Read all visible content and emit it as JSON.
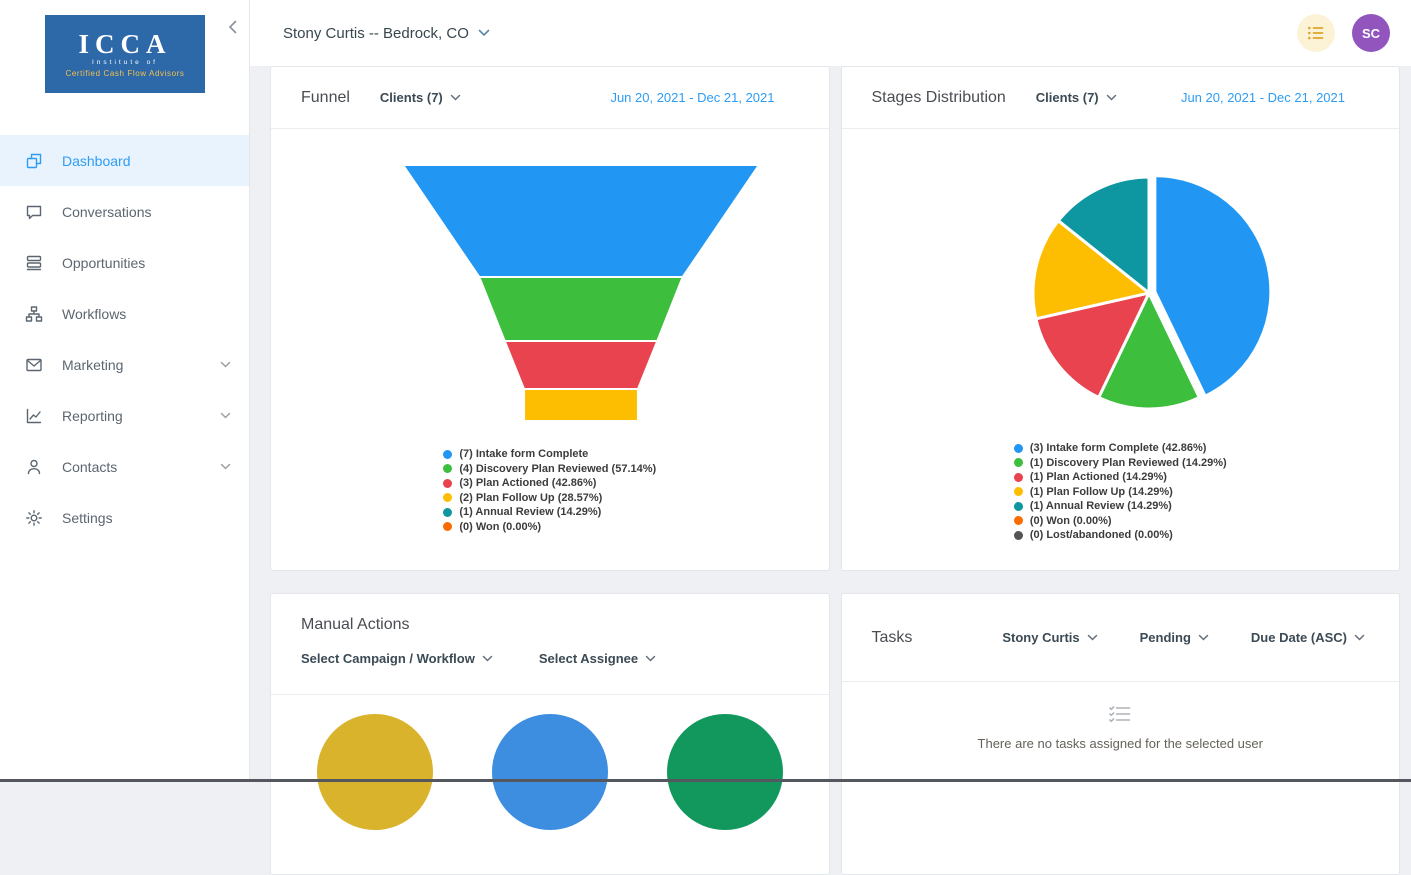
{
  "sidebar": {
    "logo": {
      "acronym": "ICCA",
      "line1": "Institute of",
      "line2": "Certified Cash Flow Advisors"
    },
    "items": [
      {
        "label": "Dashboard",
        "icon": "dashboard-icon",
        "active": true,
        "expandable": false
      },
      {
        "label": "Conversations",
        "icon": "conversations-icon",
        "active": false,
        "expandable": false
      },
      {
        "label": "Opportunities",
        "icon": "opportunities-icon",
        "active": false,
        "expandable": false
      },
      {
        "label": "Workflows",
        "icon": "workflows-icon",
        "active": false,
        "expandable": false
      },
      {
        "label": "Marketing",
        "icon": "marketing-icon",
        "active": false,
        "expandable": true
      },
      {
        "label": "Reporting",
        "icon": "reporting-icon",
        "active": false,
        "expandable": true
      },
      {
        "label": "Contacts",
        "icon": "contacts-icon",
        "active": false,
        "expandable": true
      },
      {
        "label": "Settings",
        "icon": "settings-icon",
        "active": false,
        "expandable": false
      }
    ]
  },
  "header": {
    "account": "Stony Curtis -- Bedrock, CO",
    "avatar_initials": "SC"
  },
  "funnel_card": {
    "title": "Funnel",
    "filter_label": "Clients (7)",
    "date_range": "Jun 20, 2021 - Dec 21, 2021"
  },
  "stages_card": {
    "title": "Stages Distribution",
    "filter_label": "Clients (7)",
    "date_range": "Jun 20, 2021 - Dec 21, 2021"
  },
  "manual_actions_card": {
    "title": "Manual Actions",
    "campaign_filter": "Select Campaign / Workflow",
    "assignee_filter": "Select Assignee",
    "circle_colors": [
      "#D9B32B",
      "#3D8EE0",
      "#12985C"
    ]
  },
  "tasks_card": {
    "title": "Tasks",
    "user_filter": "Stony Curtis",
    "status_filter": "Pending",
    "sort_filter": "Due Date (ASC)",
    "empty_message": "There are no tasks assigned for the selected user"
  },
  "colors": {
    "accent_blue": "#2196F3",
    "active_nav_bg": "#E9F3FE",
    "date_link_blue": "#2D9CF4",
    "avatar_purple": "#9155BD",
    "quick_actions_bg": "#FCF3D7"
  },
  "chart_data": [
    {
      "type": "funnel",
      "title": "Funnel",
      "legend_position": "bottom",
      "stages": [
        {
          "label": "Intake form Complete",
          "count": 7,
          "percent": null,
          "color": "#2196F3"
        },
        {
          "label": "Discovery Plan Reviewed",
          "count": 4,
          "percent": "57.14%",
          "color": "#3DBE3D"
        },
        {
          "label": "Plan Actioned",
          "count": 3,
          "percent": "42.86%",
          "color": "#E8434E"
        },
        {
          "label": "Plan Follow Up",
          "count": 2,
          "percent": "28.57%",
          "color": "#FDBE02"
        },
        {
          "label": "Annual Review",
          "count": 1,
          "percent": "14.29%",
          "color": "#0E97A0"
        },
        {
          "label": "Won",
          "count": 0,
          "percent": "0.00%",
          "color": "#FA6C00"
        }
      ]
    },
    {
      "type": "pie",
      "title": "Stages Distribution",
      "legend_position": "bottom",
      "slices": [
        {
          "label": "Intake form Complete",
          "count": 3,
          "percent": "42.86%",
          "color": "#2196F3",
          "exploded": true
        },
        {
          "label": "Discovery Plan Reviewed",
          "count": 1,
          "percent": "14.29%",
          "color": "#3DBE3D",
          "exploded": false
        },
        {
          "label": "Plan Actioned",
          "count": 1,
          "percent": "14.29%",
          "color": "#E8434E",
          "exploded": false
        },
        {
          "label": "Plan Follow Up",
          "count": 1,
          "percent": "14.29%",
          "color": "#FDBE02",
          "exploded": false
        },
        {
          "label": "Annual Review",
          "count": 1,
          "percent": "14.29%",
          "color": "#0E97A0",
          "exploded": false
        },
        {
          "label": "Won",
          "count": 0,
          "percent": "0.00%",
          "color": "#FA6C00",
          "exploded": false
        },
        {
          "label": "Lost/abandoned",
          "count": 0,
          "percent": "0.00%",
          "color": "#555555",
          "exploded": false
        }
      ]
    }
  ]
}
